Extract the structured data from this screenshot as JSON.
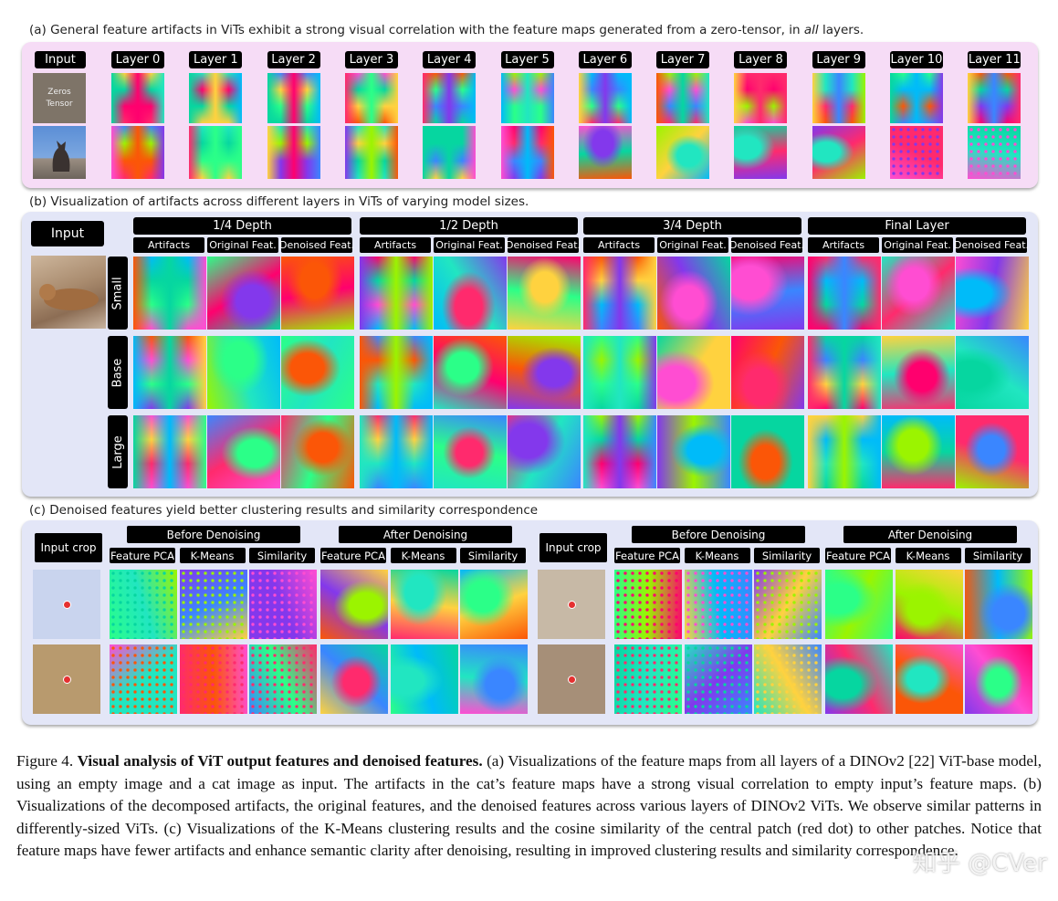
{
  "section_a": {
    "caption_before": "(a) General feature artifacts in ViTs exhibit a strong visual correlation with the feature maps generated from a zero-tensor, in ",
    "caption_em": "all",
    "caption_after": " layers.",
    "input_label": "Input",
    "zeros_line1": "Zeros",
    "zeros_line2": "Tensor",
    "layers": [
      "Layer 0",
      "Layer 1",
      "Layer 2",
      "Layer 3",
      "Layer 4",
      "Layer 5",
      "Layer 6",
      "Layer 7",
      "Layer 8",
      "Layer 9",
      "Layer 10",
      "Layer 11"
    ]
  },
  "section_b": {
    "caption": "(b) Visualization of artifacts across different layers in ViTs of varying model sizes.",
    "input_label": "Input",
    "depths": [
      "1/4 Depth",
      "1/2 Depth",
      "3/4 Depth",
      "Final Layer"
    ],
    "subs": [
      "Artifacts",
      "Original Feat.",
      "Denoised Feat."
    ],
    "sizes": [
      "Small",
      "Base",
      "Large"
    ]
  },
  "section_c": {
    "caption": "(c) Denoised features yield better clustering results and similarity correspondence",
    "input_crop_label": "Input crop",
    "before_label": "Before Denoising",
    "after_label": "After Denoising",
    "subs": [
      "Feature PCA",
      "K-Means",
      "Similarity"
    ]
  },
  "figure_caption": {
    "label": "Figure 4.",
    "title": "Visual analysis of ViT output features and denoised features.",
    "body": " (a) Visualizations of the feature maps from all layers of a DINOv2 [22] ViT-base model, using an empty image and a cat image as input. The artifacts in the cat’s feature maps have a strong visual correlation to empty input’s feature maps. (b) Visualizations of the decomposed artifacts, the original features, and the denoised features across various layers of DINOv2 ViTs. We observe similar patterns in differently-sized ViTs. (c) Visualizations of the K-Means clustering results and the cosine similarity of the central patch (red dot) to other patches. Notice that feature maps have fewer artifacts and enhance semantic clarity after denoising, resulting in improved clustering results and similarity correspondence."
  },
  "watermark": "知乎 @CVer",
  "colors": {
    "panel_a_bg": "#f6dcf6",
    "panel_bc_bg": "#e3e6f7",
    "label_bg": "#000000",
    "dot": "#e53030"
  }
}
